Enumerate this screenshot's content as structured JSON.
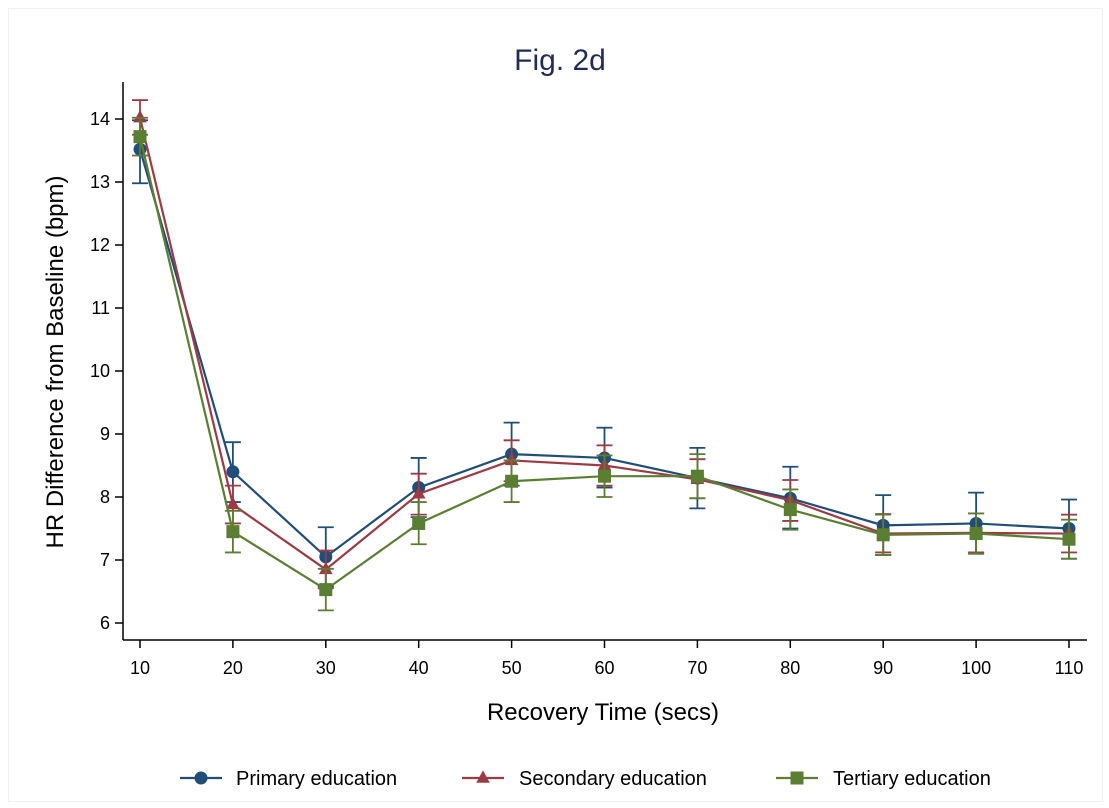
{
  "chart_data": {
    "type": "line",
    "title": "Fig. 2d",
    "xlabel": "Recovery Time (secs)",
    "ylabel": "HR Difference from Baseline (bpm)",
    "x": [
      10,
      20,
      30,
      40,
      50,
      60,
      70,
      80,
      90,
      100,
      110
    ],
    "x_ticks": [
      "10",
      "20",
      "30",
      "40",
      "50",
      "60",
      "70",
      "80",
      "90",
      "100",
      "110"
    ],
    "y_ticks": [
      "6",
      "7",
      "8",
      "9",
      "10",
      "11",
      "12",
      "13",
      "14"
    ],
    "xlim": [
      10,
      110
    ],
    "ylim": [
      5.8,
      14.6
    ],
    "grid": false,
    "legend_position": "bottom",
    "series": [
      {
        "name": "Primary education",
        "color": "#1f4e79",
        "marker": "circle",
        "values": [
          13.52,
          8.4,
          7.05,
          8.15,
          8.68,
          8.62,
          8.3,
          7.98,
          7.55,
          7.58,
          7.5
        ],
        "lower": [
          12.98,
          7.92,
          6.58,
          7.68,
          8.18,
          8.15,
          7.82,
          7.5,
          7.08,
          7.1,
          7.02
        ],
        "upper": [
          13.98,
          8.87,
          7.52,
          8.62,
          9.18,
          9.1,
          8.78,
          8.48,
          8.03,
          8.07,
          7.96
        ]
      },
      {
        "name": "Secondary education",
        "color": "#9e3a44",
        "marker": "triangle",
        "values": [
          14.02,
          7.88,
          6.85,
          8.05,
          8.58,
          8.5,
          8.28,
          7.95,
          7.42,
          7.43,
          7.42
        ],
        "lower": [
          13.75,
          7.58,
          6.55,
          7.72,
          8.25,
          8.18,
          7.98,
          7.62,
          7.12,
          7.12,
          7.12
        ],
        "upper": [
          14.3,
          8.18,
          7.15,
          8.37,
          8.9,
          8.82,
          8.6,
          8.27,
          7.73,
          7.74,
          7.72
        ]
      },
      {
        "name": "Tertiary education",
        "color": "#5a7f32",
        "marker": "square",
        "values": [
          13.72,
          7.45,
          6.53,
          7.58,
          8.25,
          8.33,
          8.33,
          7.8,
          7.4,
          7.42,
          7.33
        ],
        "lower": [
          13.42,
          7.12,
          6.2,
          7.25,
          7.92,
          8.0,
          7.98,
          7.48,
          7.08,
          7.1,
          7.02
        ],
        "upper": [
          14.02,
          7.78,
          6.86,
          7.92,
          8.58,
          8.66,
          8.68,
          8.12,
          7.72,
          7.74,
          7.64
        ]
      }
    ]
  }
}
